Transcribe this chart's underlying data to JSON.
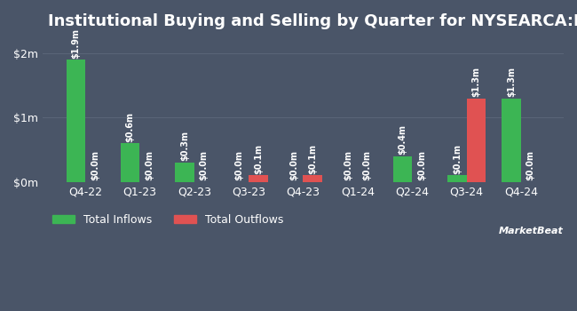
{
  "title": "Institutional Buying and Selling by Quarter for NYSEARCA:DIEM",
  "quarters": [
    "Q4-22",
    "Q1-23",
    "Q2-23",
    "Q3-23",
    "Q4-23",
    "Q1-24",
    "Q2-24",
    "Q3-24",
    "Q4-24"
  ],
  "inflows": [
    1900000,
    600000,
    300000,
    0,
    0,
    0,
    400000,
    100000,
    1300000
  ],
  "outflows": [
    0,
    0,
    0,
    100000,
    100000,
    0,
    0,
    1300000,
    0
  ],
  "inflow_labels": [
    "$1.9m",
    "$0.6m",
    "$0.3m",
    "$0.0m",
    "$0.0m",
    "$0.0m",
    "$0.4m",
    "$0.1m",
    "$1.3m"
  ],
  "outflow_labels": [
    "$0.0m",
    "$0.0m",
    "$0.0m",
    "$0.1m",
    "$0.1m",
    "$0.0m",
    "$0.0m",
    "$1.3m",
    "$0.0m"
  ],
  "inflow_color": "#3cb554",
  "outflow_color": "#e05252",
  "background_color": "#4a5568",
  "plot_bg_color": "#4a5568",
  "text_color": "#ffffff",
  "grid_color": "#5a6578",
  "ylim": [
    0,
    2200000
  ],
  "yticks": [
    0,
    1000000,
    2000000
  ],
  "ytick_labels": [
    "$0m",
    "$1m",
    "$2m"
  ],
  "bar_width": 0.35,
  "legend_labels": [
    "Total Inflows",
    "Total Outflows"
  ],
  "title_fontsize": 13,
  "label_fontsize": 7,
  "tick_fontsize": 9,
  "legend_fontsize": 9
}
